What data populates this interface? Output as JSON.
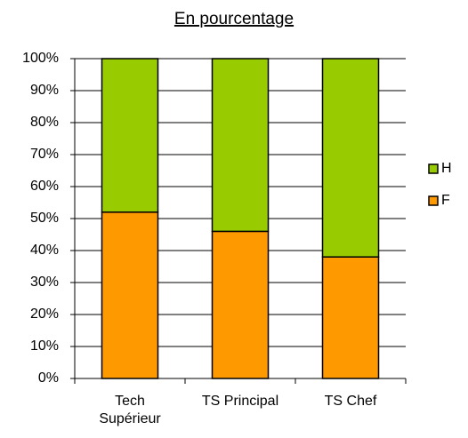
{
  "chart_data": {
    "type": "stacked_bar",
    "title": "En pourcentage",
    "categories": [
      "Tech Supérieur",
      "TS Principal",
      "TS Chef"
    ],
    "series": [
      {
        "name": "F",
        "color": "#ff9900",
        "values": [
          52,
          46,
          38
        ]
      },
      {
        "name": "H",
        "color": "#99cc00",
        "values": [
          48,
          54,
          62
        ]
      }
    ],
    "ylim": [
      0,
      100
    ],
    "yticks": [
      {
        "value": 0,
        "label": "0%"
      },
      {
        "value": 10,
        "label": "10%"
      },
      {
        "value": 20,
        "label": "20%"
      },
      {
        "value": 30,
        "label": "30%"
      },
      {
        "value": 40,
        "label": "40%"
      },
      {
        "value": 50,
        "label": "50%"
      },
      {
        "value": 60,
        "label": "60%"
      },
      {
        "value": 70,
        "label": "70%"
      },
      {
        "value": 80,
        "label": "80%"
      },
      {
        "value": 90,
        "label": "90%"
      },
      {
        "value": 100,
        "label": "100%"
      }
    ],
    "grid": true,
    "legend": "right"
  }
}
